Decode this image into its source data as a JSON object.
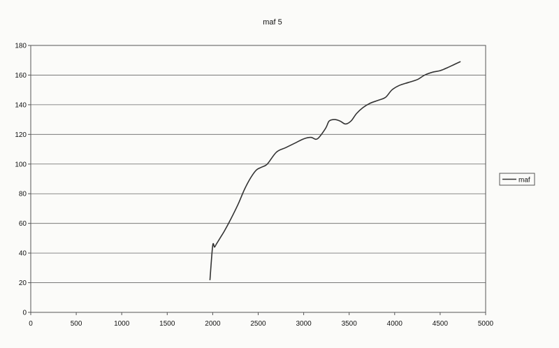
{
  "chart_data": {
    "type": "line",
    "title": "maf 5",
    "xlabel": "",
    "ylabel": "",
    "xlim": [
      0,
      5000
    ],
    "ylim": [
      0,
      180
    ],
    "xticks": [
      0,
      500,
      1000,
      1500,
      2000,
      2500,
      3000,
      3500,
      4000,
      4500,
      5000
    ],
    "yticks": [
      0,
      20,
      40,
      60,
      80,
      100,
      120,
      140,
      160,
      180
    ],
    "grid": "horizontal",
    "legend_position": "right",
    "series": [
      {
        "name": "maf",
        "color": "#333333",
        "x": [
          1970,
          2000,
          2020,
          2040,
          2080,
          2130,
          2200,
          2280,
          2350,
          2420,
          2480,
          2540,
          2600,
          2700,
          2800,
          2900,
          3000,
          3080,
          3150,
          3240,
          3280,
          3340,
          3400,
          3460,
          3520,
          3580,
          3650,
          3730,
          3820,
          3900,
          3970,
          4050,
          4150,
          4250,
          4330,
          4420,
          4500,
          4580,
          4650,
          4720
        ],
        "y": [
          22,
          45,
          44,
          46,
          50,
          55,
          63,
          73,
          83,
          91,
          96,
          98,
          100,
          108,
          111,
          114,
          117,
          118,
          117,
          124,
          129,
          130,
          129,
          127,
          129,
          134,
          138,
          141,
          143,
          145,
          150,
          153,
          155,
          157,
          160,
          162,
          163,
          165,
          167,
          169
        ]
      }
    ]
  }
}
